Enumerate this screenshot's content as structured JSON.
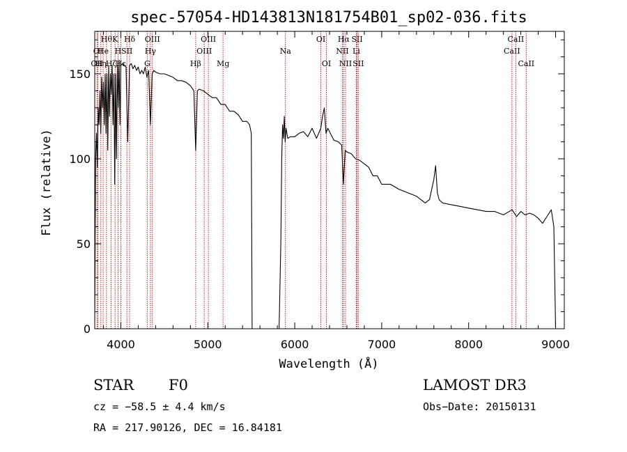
{
  "chart_data": {
    "type": "line",
    "title": "spec-57054-HD143813N181754B01_sp02-036.fits",
    "xlabel": "Wavelength (Å)",
    "ylabel": "Flux (relative)",
    "xlim": [
      3700,
      9100
    ],
    "ylim": [
      0,
      175
    ],
    "xticks": [
      4000,
      5000,
      6000,
      7000,
      8000,
      9000
    ],
    "yticks": [
      0,
      50,
      100,
      150
    ],
    "series": [
      {
        "name": "spectrum",
        "x": [
          3700,
          3710,
          3720,
          3730,
          3740,
          3750,
          3760,
          3770,
          3780,
          3790,
          3800,
          3810,
          3820,
          3830,
          3840,
          3850,
          3860,
          3870,
          3880,
          3890,
          3900,
          3910,
          3920,
          3930,
          3940,
          3950,
          3960,
          3970,
          3980,
          3990,
          4000,
          4020,
          4040,
          4060,
          4080,
          4100,
          4120,
          4140,
          4160,
          4180,
          4200,
          4220,
          4240,
          4260,
          4280,
          4300,
          4320,
          4340,
          4360,
          4380,
          4400,
          4450,
          4500,
          4550,
          4600,
          4650,
          4700,
          4750,
          4800,
          4840,
          4861,
          4880,
          4900,
          4950,
          5000,
          5050,
          5100,
          5150,
          5200,
          5250,
          5300,
          5350,
          5400,
          5450,
          5480,
          5500,
          5510,
          5530,
          5600,
          5700,
          5820,
          5840,
          5850,
          5860,
          5870,
          5880,
          5890,
          5900,
          5910,
          5920,
          5950,
          6000,
          6050,
          6100,
          6150,
          6200,
          6250,
          6300,
          6320,
          6340,
          6360,
          6380,
          6400,
          6450,
          6500,
          6540,
          6560,
          6580,
          6600,
          6650,
          6700,
          6750,
          6800,
          6850,
          6880,
          6900,
          6950,
          7000,
          7100,
          7200,
          7300,
          7400,
          7500,
          7550,
          7600,
          7620,
          7640,
          7660,
          7700,
          7800,
          7900,
          8000,
          8100,
          8200,
          8300,
          8400,
          8500,
          8550,
          8600,
          8650,
          8700,
          8750,
          8800,
          8850,
          8900,
          8950,
          8980,
          9000
        ],
        "y": [
          5,
          100,
          115,
          95,
          130,
          120,
          140,
          115,
          148,
          130,
          145,
          120,
          150,
          115,
          150,
          105,
          155,
          125,
          150,
          138,
          155,
          120,
          150,
          85,
          150,
          100,
          155,
          130,
          158,
          120,
          155,
          156,
          155,
          154,
          110,
          155,
          156,
          153,
          155,
          152,
          154,
          150,
          152,
          150,
          154,
          148,
          152,
          120,
          150,
          152,
          151,
          150,
          150,
          149,
          148,
          146,
          146,
          145,
          143,
          140,
          105,
          140,
          141,
          140,
          138,
          136,
          136,
          132,
          132,
          128,
          128,
          126,
          122,
          122,
          120,
          115,
          0,
          0,
          0,
          0,
          0,
          50,
          100,
          120,
          112,
          125,
          110,
          118,
          115,
          112,
          113,
          113,
          115,
          116,
          113,
          118,
          112,
          118,
          125,
          130,
          115,
          118,
          116,
          111,
          110,
          108,
          85,
          105,
          104,
          103,
          100,
          99,
          97,
          95,
          92,
          90,
          90,
          85,
          85,
          82,
          80,
          78,
          74,
          76,
          88,
          96,
          80,
          76,
          74,
          73,
          72,
          71,
          70,
          69,
          69,
          67,
          70,
          66,
          69,
          67,
          68,
          67,
          65,
          62,
          66,
          70,
          60,
          0
        ],
        "color": "#000000"
      }
    ],
    "line_markers": [
      {
        "wl": 3726,
        "row": 2,
        "label": "OII",
        "color": "#cc0000"
      },
      {
        "wl": 3736,
        "row": 1,
        "label": "OI",
        "color": "#cc0000"
      },
      {
        "wl": 3770,
        "row": 2,
        "label": "Hη",
        "color": "#cc0000"
      },
      {
        "wl": 3797,
        "row": 1,
        "label": "He",
        "color": "#cc0000"
      },
      {
        "wl": 3835,
        "row": 0,
        "label": "Hθ",
        "color": "#cc0000"
      },
      {
        "wl": 3889,
        "row": 2,
        "label": "Hζ",
        "color": "#cc0000"
      },
      {
        "wl": 3934,
        "row": 0,
        "label": "K",
        "color": "#cc0000"
      },
      {
        "wl": 3968,
        "row": 1,
        "label": "H",
        "color": "#cc0000"
      },
      {
        "wl": 4000,
        "row": 2,
        "label": "Hε",
        "color": "#cc0000"
      },
      {
        "wl": 4070,
        "row": 1,
        "label": "SII",
        "color": "#cc0000"
      },
      {
        "wl": 4101,
        "row": 0,
        "label": "Hδ",
        "color": "#cc0000"
      },
      {
        "wl": 4304,
        "row": 2,
        "label": "G",
        "color": "#cc0000"
      },
      {
        "wl": 4340,
        "row": 1,
        "label": "Hγ",
        "color": "#cc0000"
      },
      {
        "wl": 4363,
        "row": 0,
        "label": "OIII",
        "color": "#cc0000"
      },
      {
        "wl": 4861,
        "row": 2,
        "label": "Hβ",
        "color": "#cc0000"
      },
      {
        "wl": 4959,
        "row": 1,
        "label": "OIII",
        "color": "#cc0000"
      },
      {
        "wl": 5007,
        "row": 0,
        "label": "OIII",
        "color": "#cc0000"
      },
      {
        "wl": 5175,
        "row": 2,
        "label": "Mg",
        "color": "#cc0000"
      },
      {
        "wl": 5893,
        "row": 1,
        "label": "Na",
        "color": "#cc0000"
      },
      {
        "wl": 6300,
        "row": 0,
        "label": "OI",
        "color": "#cc0000"
      },
      {
        "wl": 6364,
        "row": 2,
        "label": "OI",
        "color": "#cc0000"
      },
      {
        "wl": 6548,
        "row": 1,
        "label": "NII",
        "color": "#cc0000"
      },
      {
        "wl": 6563,
        "row": 0,
        "label": "Hα",
        "color": "#cc0000"
      },
      {
        "wl": 6584,
        "row": 2,
        "label": "NII",
        "color": "#cc0000"
      },
      {
        "wl": 6708,
        "row": 1,
        "label": "Li",
        "color": "#cc0000"
      },
      {
        "wl": 6717,
        "row": 0,
        "label": "SII",
        "color": "#cc0000"
      },
      {
        "wl": 6731,
        "row": 2,
        "label": "SII",
        "color": "#cc0000"
      },
      {
        "wl": 8498,
        "row": 1,
        "label": "CaII",
        "color": "#cc0000"
      },
      {
        "wl": 8542,
        "row": 0,
        "label": "CaII",
        "color": "#cc0000"
      },
      {
        "wl": 8662,
        "row": 2,
        "label": "CaII",
        "color": "#cc0000"
      }
    ]
  },
  "info": {
    "class": "STAR",
    "subclass": "F0",
    "survey": "LAMOST DR3",
    "redshift": "cz = −58.5 ± 4.4 km/s",
    "obs_date": "Obs−Date: 20150131",
    "coords": "RA = 217.90126, DEC =  16.84181"
  }
}
